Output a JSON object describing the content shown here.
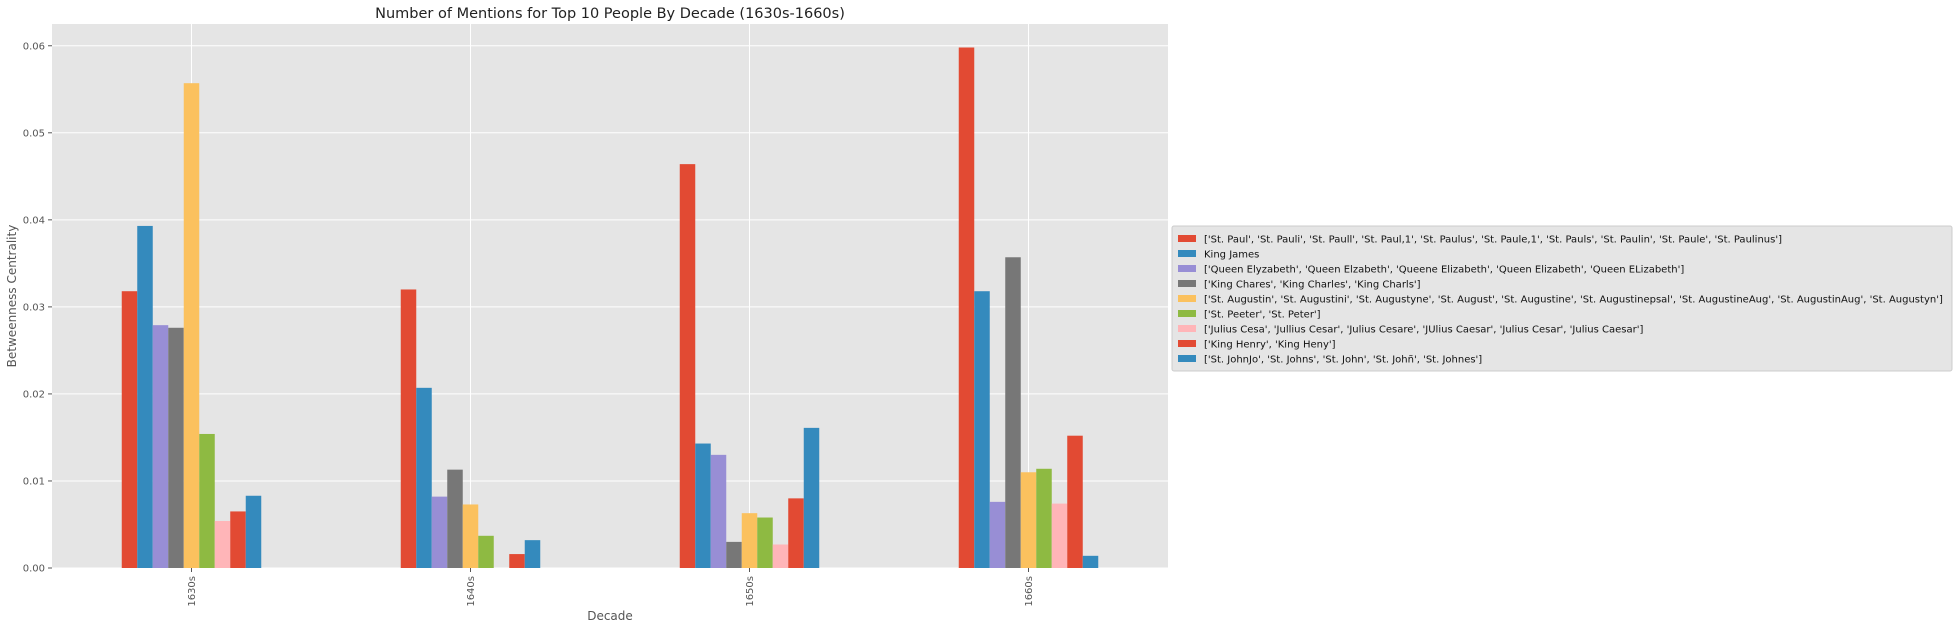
{
  "chart_data": {
    "type": "bar",
    "title": "Number of Mentions for Top 10 People By Decade (1630s-1660s)",
    "xlabel": "Decade",
    "ylabel": "Betweenness Centrality",
    "categories": [
      "1630s",
      "1640s",
      "1650s",
      "1660s"
    ],
    "ylim": [
      0,
      0.0625
    ],
    "yticks": [
      "0.00",
      "0.01",
      "0.02",
      "0.03",
      "0.04",
      "0.05",
      "0.06"
    ],
    "grid": true,
    "legend_position": "right",
    "series": [
      {
        "name": "['St. Paul', 'St. Pauli', 'St. Paull', 'St. Paul,1', 'St. Paulus', 'St. Paule,1', 'St. Pauls', 'St. Paulin', 'St. Paule', 'St. Paulinus']",
        "color": "#E24A33",
        "values": [
          0.0318,
          0.032,
          0.0464,
          0.0598
        ]
      },
      {
        "name": "King James",
        "color": "#348ABD",
        "values": [
          0.0393,
          0.0207,
          0.0143,
          0.0318
        ]
      },
      {
        "name": "['Queen Elyzabeth', 'Queen Elzabeth', 'Queene Elizabeth', 'Queen Elizabeth', 'Queen ELizabeth']",
        "color": "#988ED5",
        "values": [
          0.0279,
          0.0082,
          0.013,
          0.0076
        ]
      },
      {
        "name": "['King Chares', 'King Charles', 'King Charls']",
        "color": "#777777",
        "values": [
          0.0276,
          0.0113,
          0.003,
          0.0357
        ]
      },
      {
        "name": "['St. Augustin', 'St. Augustini', 'St. Augustyne', 'St. August', 'St. Augustine', 'St. Augustinepsal', 'St. AugustineAug', 'St. AugustinAug', 'St. Augustyn']",
        "color": "#FBC15E",
        "values": [
          0.0557,
          0.0073,
          0.0063,
          0.011
        ]
      },
      {
        "name": "['St. Peeter', 'St. Peter']",
        "color": "#8EBA42",
        "values": [
          0.0154,
          0.0037,
          0.0058,
          0.0114
        ]
      },
      {
        "name": "['Julius Cesa', 'Jullius Cesar', 'Julius Cesare', 'JUlius Caesar', 'Julius Cesar', 'Julius Caesar']",
        "color": "#FFB5B8",
        "values": [
          0.0054,
          0.0,
          0.0027,
          0.0074
        ]
      },
      {
        "name": "['King Henry', 'King Heny']",
        "color": "#E24A33",
        "values": [
          0.0065,
          0.0016,
          0.008,
          0.0152
        ]
      },
      {
        "name": "['St. JohnJo', 'St. Johns', 'St. John', 'St. Johñ', 'St. Johnes']",
        "color": "#348ABD",
        "values": [
          0.0083,
          0.0032,
          0.0161,
          0.0014
        ]
      }
    ]
  }
}
